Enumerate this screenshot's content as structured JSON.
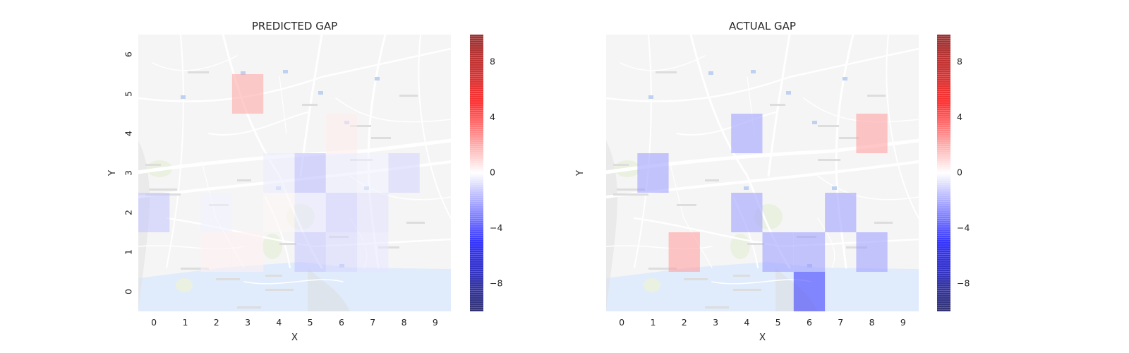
{
  "colors": {
    "negative_max": "#00007f",
    "negative": "#0000ff",
    "zero": "#ffffff",
    "positive": "#ff0000",
    "positive_max": "#7f0000",
    "map_land": "#f1f1f1",
    "map_water": "#d6e6fb",
    "map_park": "#e3ecd6"
  },
  "chart_data": [
    {
      "type": "heatmap",
      "title": "PREDICTED GAP",
      "xlabel": "X",
      "ylabel": "Y",
      "x_ticks": [
        "0",
        "1",
        "2",
        "3",
        "4",
        "5",
        "6",
        "7",
        "8",
        "9"
      ],
      "y_ticks": [
        "0",
        "1",
        "2",
        "3",
        "4",
        "5",
        "6"
      ],
      "xlim": [
        -0.5,
        9.5
      ],
      "ylim": [
        -0.5,
        6.5
      ],
      "background": "city street map",
      "colorbar": {
        "vmin": -10,
        "vmax": 10,
        "ticks": [
          "8",
          "4",
          "0",
          "−4",
          "−8"
        ],
        "tick_values": [
          8,
          4,
          0,
          -4,
          -8
        ],
        "colormap": "seismic"
      },
      "cells": [
        {
          "x": 3,
          "y": 5,
          "value": 1.8
        },
        {
          "x": 0,
          "y": 2,
          "value": -1.2
        },
        {
          "x": 5,
          "y": 3,
          "value": -1.4
        },
        {
          "x": 8,
          "y": 3,
          "value": -0.9
        },
        {
          "x": 5,
          "y": 2,
          "value": -0.5
        },
        {
          "x": 6,
          "y": 2,
          "value": -1.0
        },
        {
          "x": 7,
          "y": 2,
          "value": -0.6
        },
        {
          "x": 5,
          "y": 1,
          "value": -1.2
        },
        {
          "x": 6,
          "y": 1,
          "value": -0.8
        },
        {
          "x": 7,
          "y": 1,
          "value": -0.5
        },
        {
          "x": 4,
          "y": 3,
          "value": -0.4
        },
        {
          "x": 6,
          "y": 3,
          "value": -0.4
        },
        {
          "x": 7,
          "y": 3,
          "value": -0.3
        },
        {
          "x": 6,
          "y": 4,
          "value": 0.4
        },
        {
          "x": 2,
          "y": 1,
          "value": 0.3
        },
        {
          "x": 3,
          "y": 1,
          "value": 0.3
        },
        {
          "x": 2,
          "y": 2,
          "value": -0.3
        },
        {
          "x": 4,
          "y": 2,
          "value": 0.2
        }
      ]
    },
    {
      "type": "heatmap",
      "title": "ACTUAL GAP",
      "xlabel": "X",
      "ylabel": "Y",
      "x_ticks": [
        "0",
        "1",
        "2",
        "3",
        "4",
        "5",
        "6",
        "7",
        "8",
        "9"
      ],
      "xlim": [
        -0.5,
        9.5
      ],
      "ylim": [
        -0.5,
        6.5
      ],
      "background": "city street map",
      "colorbar": {
        "vmin": -10,
        "vmax": 10,
        "ticks": [
          "8",
          "4",
          "0",
          "−4",
          "−8"
        ],
        "tick_values": [
          8,
          4,
          0,
          -4,
          -8
        ],
        "colormap": "seismic"
      },
      "cells": [
        {
          "x": 4,
          "y": 4,
          "value": -2.0
        },
        {
          "x": 8,
          "y": 4,
          "value": 2.0
        },
        {
          "x": 1,
          "y": 3,
          "value": -2.0
        },
        {
          "x": 4,
          "y": 2,
          "value": -2.0
        },
        {
          "x": 7,
          "y": 2,
          "value": -2.0
        },
        {
          "x": 2,
          "y": 1,
          "value": 2.0
        },
        {
          "x": 5,
          "y": 1,
          "value": -2.0
        },
        {
          "x": 6,
          "y": 1,
          "value": -2.0
        },
        {
          "x": 8,
          "y": 1,
          "value": -2.0
        },
        {
          "x": 6,
          "y": 0,
          "value": -4.0
        }
      ]
    }
  ]
}
